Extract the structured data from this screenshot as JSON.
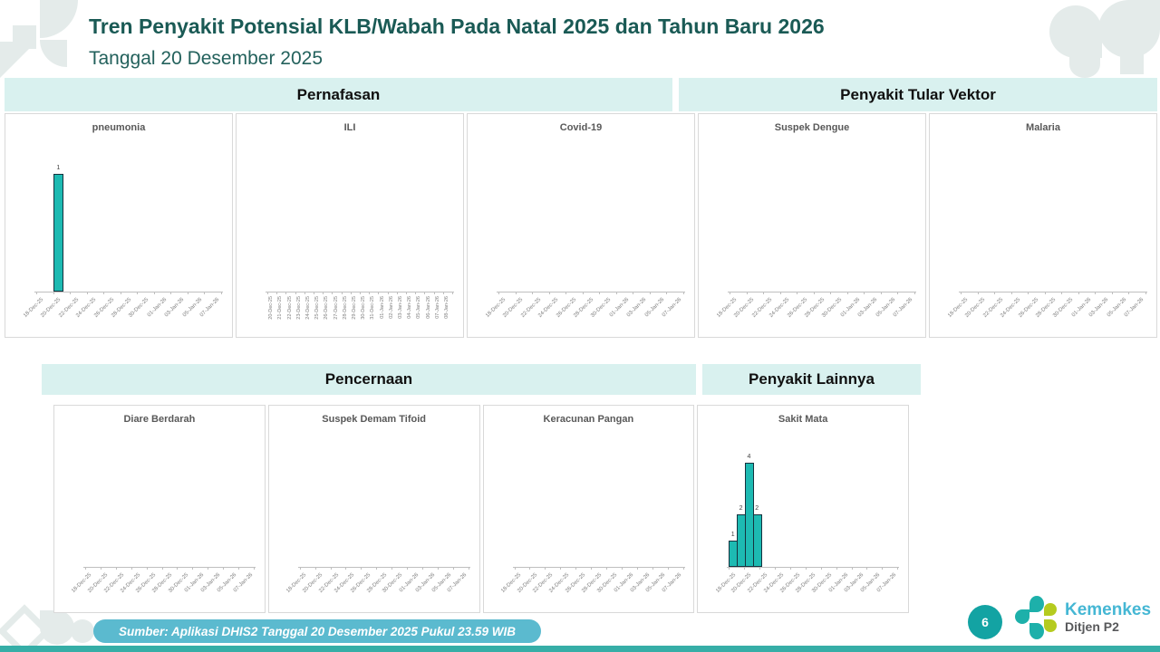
{
  "page": {
    "title": "Tren Penyakit Potensial KLB/Wabah Pada Natal 2025 dan Tahun Baru 2026",
    "subtitle": "Tanggal 20 Desember 2025",
    "page_number": "6",
    "footer_source": "Sumber: Aplikasi DHIS2 Tanggal 20 Desember 2025 Pukul 23.59 WIB",
    "logo": {
      "brand": "Kemenkes",
      "unit": "Ditjen P2"
    }
  },
  "sections": {
    "row1": [
      {
        "label": "Pernafasan"
      },
      {
        "label": "Penyakit Tular Vektor"
      }
    ],
    "row2": [
      {
        "label": "Pencernaan"
      },
      {
        "label": "Penyakit Lainnya"
      }
    ]
  },
  "colors": {
    "title_text": "#1a5a55",
    "section_header_bg": "#d9f1ef",
    "bar_fill": "#1dbab2",
    "bar_border": "#16323e",
    "pill_bg": "#5bbacf",
    "page_circle": "#13a3a3",
    "brand_blue": "#45b7d4",
    "logo_teal": "#1db0aa",
    "logo_green": "#b5cb1f",
    "bottom_strip": "#36aea7"
  },
  "chart_data": [
    {
      "type": "bar",
      "title": "pneumonia",
      "section": "Pernafasan",
      "slots": 21,
      "tick_rotation": 45,
      "ylim": [
        0,
        1.25
      ],
      "tick_labels": [
        "18-Dec-25",
        "20-Dec-25",
        "22-Dec-25",
        "24-Dec-25",
        "26-Dec-25",
        "28-Dec-25",
        "30-Dec-25",
        "01-Jan-26",
        "03-Jan-26",
        "05-Jan-26",
        "07-Jan-26"
      ],
      "bars": [
        {
          "date": "20-Dec-25",
          "slot": 2,
          "value": 1
        }
      ]
    },
    {
      "type": "bar",
      "title": "ILI",
      "section": "Pernafasan",
      "slots": 20,
      "tick_rotation": 90,
      "ylim": [
        0,
        1
      ],
      "tick_labels": [
        "20-Dec-25",
        "21-Dec-25",
        "22-Dec-25",
        "23-Dec-25",
        "24-Dec-25",
        "25-Dec-25",
        "26-Dec-25",
        "27-Dec-25",
        "28-Dec-25",
        "29-Dec-25",
        "30-Dec-25",
        "31-Dec-25",
        "01-Jan-26",
        "02-Jan-26",
        "03-Jan-26",
        "04-Jan-26",
        "05-Jan-26",
        "06-Jan-26",
        "07-Jan-26",
        "08-Jan-26"
      ],
      "bars": []
    },
    {
      "type": "bar",
      "title": "Covid-19",
      "section": "Pernafasan",
      "slots": 21,
      "tick_rotation": 45,
      "ylim": [
        0,
        1
      ],
      "tick_labels": [
        "18-Dec-25",
        "20-Dec-25",
        "22-Dec-25",
        "24-Dec-25",
        "26-Dec-25",
        "28-Dec-25",
        "30-Dec-25",
        "01-Jan-26",
        "03-Jan-26",
        "05-Jan-26",
        "07-Jan-26"
      ],
      "bars": []
    },
    {
      "type": "bar",
      "title": "Suspek Dengue",
      "section": "Penyakit Tular Vektor",
      "slots": 21,
      "tick_rotation": 45,
      "ylim": [
        0,
        1
      ],
      "tick_labels": [
        "18-Dec-25",
        "20-Dec-25",
        "22-Dec-25",
        "24-Dec-25",
        "26-Dec-25",
        "28-Dec-25",
        "30-Dec-25",
        "01-Jan-26",
        "03-Jan-26",
        "05-Jan-26",
        "07-Jan-26"
      ],
      "bars": []
    },
    {
      "type": "bar",
      "title": "Malaria",
      "section": "Penyakit Tular Vektor",
      "slots": 21,
      "tick_rotation": 45,
      "ylim": [
        0,
        1
      ],
      "tick_labels": [
        "18-Dec-25",
        "20-Dec-25",
        "22-Dec-25",
        "24-Dec-25",
        "26-Dec-25",
        "28-Dec-25",
        "30-Dec-25",
        "01-Jan-26",
        "03-Jan-26",
        "05-Jan-26",
        "07-Jan-26"
      ],
      "bars": []
    },
    {
      "type": "bar",
      "title": "Diare Berdarah",
      "section": "Pencernaan",
      "slots": 21,
      "tick_rotation": 45,
      "ylim": [
        0,
        1
      ],
      "tick_labels": [
        "18-Dec-25",
        "20-Dec-25",
        "22-Dec-25",
        "24-Dec-25",
        "26-Dec-25",
        "28-Dec-25",
        "30-Dec-25",
        "01-Jan-26",
        "03-Jan-26",
        "05-Jan-26",
        "07-Jan-26"
      ],
      "bars": []
    },
    {
      "type": "bar",
      "title": "Suspek Demam Tifoid",
      "section": "Pencernaan",
      "slots": 21,
      "tick_rotation": 45,
      "ylim": [
        0,
        1
      ],
      "tick_labels": [
        "18-Dec-25",
        "20-Dec-25",
        "22-Dec-25",
        "24-Dec-25",
        "26-Dec-25",
        "28-Dec-25",
        "30-Dec-25",
        "01-Jan-26",
        "03-Jan-26",
        "05-Jan-26",
        "07-Jan-26"
      ],
      "bars": []
    },
    {
      "type": "bar",
      "title": "Keracunan Pangan",
      "section": "Pencernaan",
      "slots": 21,
      "tick_rotation": 45,
      "ylim": [
        0,
        1
      ],
      "tick_labels": [
        "18-Dec-25",
        "20-Dec-25",
        "22-Dec-25",
        "24-Dec-25",
        "26-Dec-25",
        "28-Dec-25",
        "30-Dec-25",
        "01-Jan-26",
        "03-Jan-26",
        "05-Jan-26",
        "07-Jan-26"
      ],
      "bars": []
    },
    {
      "type": "bar",
      "title": "Sakit Mata",
      "section": "Penyakit Lainnya",
      "slots": 21,
      "tick_rotation": 45,
      "ylim": [
        0,
        5
      ],
      "tick_labels": [
        "18-Dec-25",
        "20-Dec-25",
        "22-Dec-25",
        "24-Dec-25",
        "26-Dec-25",
        "28-Dec-25",
        "30-Dec-25",
        "01-Jan-26",
        "03-Jan-26",
        "05-Jan-26",
        "07-Jan-26"
      ],
      "bars": [
        {
          "date": "18-Dec-25",
          "slot": 0,
          "value": 1
        },
        {
          "date": "19-Dec-25",
          "slot": 1,
          "value": 2
        },
        {
          "date": "20-Dec-25",
          "slot": 2,
          "value": 4
        },
        {
          "date": "21-Dec-25",
          "slot": 3,
          "value": 2
        }
      ]
    }
  ]
}
